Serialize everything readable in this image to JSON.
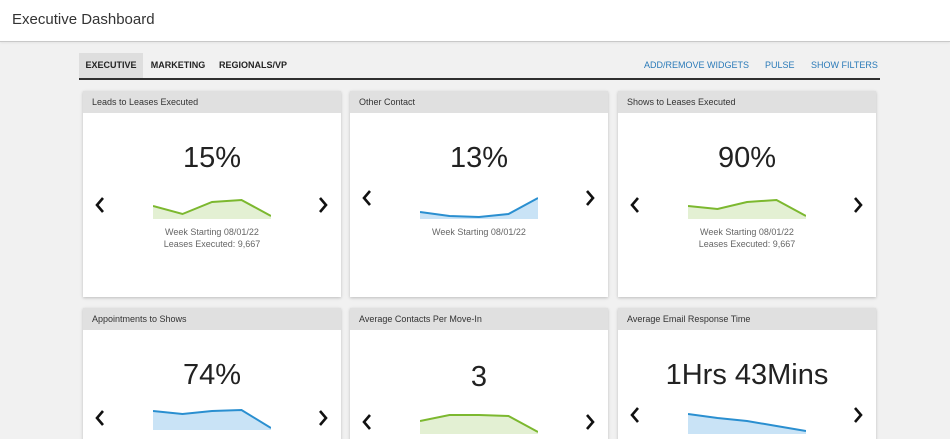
{
  "app": {
    "title": "Executive Dashboard"
  },
  "tabs": [
    {
      "label": "EXECUTIVE",
      "active": true
    },
    {
      "label": "MARKETING",
      "active": false
    },
    {
      "label": "REGIONALS/VP",
      "active": false
    }
  ],
  "actions": {
    "add_remove_widgets": "ADD/REMOVE WIDGETS",
    "pulse": "PULSE",
    "show_filters": "SHOW FILTERS"
  },
  "colors": {
    "green_line": "#7cb82f",
    "green_fill": "#e3f0d3",
    "blue_line": "#2a8fd0",
    "blue_fill": "#c9e3f6",
    "link": "#2a7ab8"
  },
  "widgets": [
    {
      "title": "Leads to Leases Executed",
      "value": "15%",
      "caption1": "Week Starting 08/01/22",
      "caption2": "Leases Executed: 9,667",
      "color": "green",
      "trend": [
        0.55,
        0.15,
        0.75,
        0.85,
        0.05
      ]
    },
    {
      "title": "Other Contact",
      "value": "13%",
      "caption1": "Week Starting 08/01/22",
      "caption2": "",
      "color": "blue",
      "trend": [
        0.25,
        0.05,
        0.0,
        0.15,
        0.95
      ]
    },
    {
      "title": "Shows to Leases Executed",
      "value": "90%",
      "caption1": "Week Starting 08/01/22",
      "caption2": "Leases Executed: 9,667",
      "color": "green",
      "trend": [
        0.55,
        0.4,
        0.75,
        0.85,
        0.05
      ]
    },
    {
      "title": "Appointments to Shows",
      "value": "74%",
      "caption1": "",
      "caption2": "",
      "color": "blue",
      "trend": [
        0.85,
        0.7,
        0.85,
        0.9,
        0.0
      ]
    },
    {
      "title": "Average Contacts Per Move-In",
      "value": "3",
      "caption1": "",
      "caption2": "",
      "color": "green",
      "trend": [
        0.55,
        0.85,
        0.85,
        0.8,
        0.0
      ]
    },
    {
      "title": "Average Email Response Time",
      "value": "1Hrs 43Mins",
      "caption1": "",
      "caption2": "",
      "color": "blue",
      "trend": [
        0.9,
        0.7,
        0.55,
        0.3,
        0.05
      ]
    }
  ]
}
